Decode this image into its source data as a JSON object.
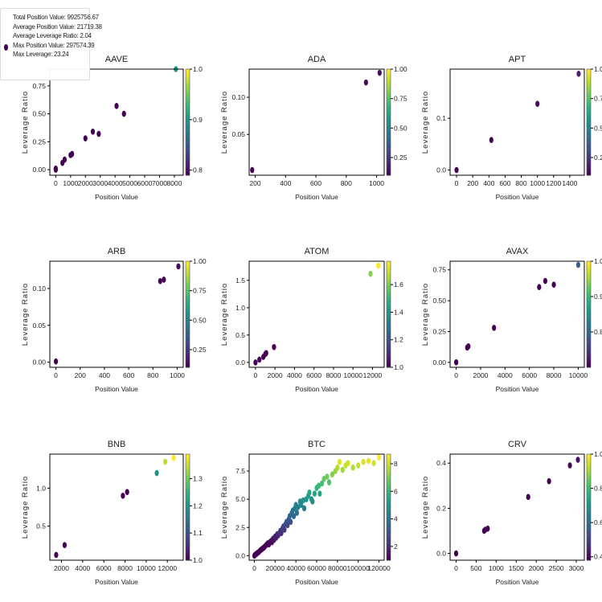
{
  "legend": {
    "lines": [
      "Total Position Value: 9925756.67",
      "Average Position Value: 21719.38",
      "Average Leverage Ratio: 2.04",
      "Max Position Value: 297574.39",
      "Max Leverage: 23.24"
    ],
    "marker_color": "#440154"
  },
  "chart_data": [
    {
      "type": "scatter",
      "title": "AAVE",
      "xlabel": "Position Value",
      "ylabel": "Leverage Ratio",
      "colormap": "viridis",
      "xlim": [
        -400,
        8600
      ],
      "ylim": [
        -0.05,
        0.9
      ],
      "xticks": [
        0,
        1000,
        2000,
        3000,
        4000,
        5000,
        6000,
        7000,
        8000
      ],
      "yticks": [
        0,
        0.25,
        0.5,
        0.75
      ],
      "ytick_labels": [
        "0.00",
        "0.25",
        "0.50",
        "0.75"
      ],
      "clim": [
        0.79,
        1.0
      ],
      "cticks": [
        0.8,
        0.9,
        1.0
      ],
      "ctick_labels": [
        "0.8",
        "0.9",
        "1.0"
      ],
      "points": [
        [
          0,
          0
        ],
        [
          0,
          0.01
        ],
        [
          450,
          0.06
        ],
        [
          600,
          0.09
        ],
        [
          1000,
          0.13
        ],
        [
          1100,
          0.14
        ],
        [
          2000,
          0.28
        ],
        [
          2500,
          0.34
        ],
        [
          2900,
          0.32
        ],
        [
          4100,
          0.57
        ],
        [
          4600,
          0.5
        ],
        [
          8100,
          0.9
        ]
      ]
    },
    {
      "type": "scatter",
      "title": "ADA",
      "xlabel": "Position Value",
      "ylabel": "Leverage Ratio",
      "colormap": "viridis",
      "xlim": [
        160,
        1050
      ],
      "ylim": [
        -0.005,
        0.138
      ],
      "xticks": [
        200,
        400,
        600,
        800,
        1000
      ],
      "yticks": [
        0.05,
        0.1
      ],
      "ytick_labels": [
        "0.05",
        "0.10"
      ],
      "clim": [
        0.1,
        1.0
      ],
      "cticks": [
        0.25,
        0.5,
        0.75,
        1.0
      ],
      "ctick_labels": [
        "0.25",
        "0.50",
        "0.75",
        "1.00"
      ],
      "points": [
        [
          180,
          0.002
        ],
        [
          930,
          0.12
        ],
        [
          1020,
          0.133
        ]
      ]
    },
    {
      "type": "scatter",
      "title": "APT",
      "xlabel": "Position Value",
      "ylabel": "Leverage Ratio",
      "colormap": "viridis",
      "xlim": [
        -80,
        1580
      ],
      "ylim": [
        -0.01,
        0.195
      ],
      "xticks": [
        0,
        200,
        400,
        600,
        800,
        1000,
        1200,
        1400
      ],
      "yticks": [
        0,
        0.1
      ],
      "ytick_labels": [
        "0.0",
        "0.1"
      ],
      "clim": [
        0.1,
        1.0
      ],
      "cticks": [
        0.25,
        0.5,
        0.75,
        1.0
      ],
      "ctick_labels": [
        "0.25",
        "0.50",
        "0.75",
        "1.00"
      ],
      "points": [
        [
          0,
          0
        ],
        [
          430,
          0.058
        ],
        [
          1000,
          0.128
        ],
        [
          1510,
          0.186
        ]
      ]
    },
    {
      "type": "scatter",
      "title": "ARB",
      "xlabel": "Position Value",
      "ylabel": "Leverage Ratio",
      "colormap": "viridis",
      "xlim": [
        -50,
        1050
      ],
      "ylim": [
        -0.007,
        0.137
      ],
      "xticks": [
        0,
        200,
        400,
        600,
        800,
        1000
      ],
      "yticks": [
        0,
        0.05,
        0.1
      ],
      "ytick_labels": [
        "0.00",
        "0.05",
        "0.10"
      ],
      "clim": [
        0.1,
        1.0
      ],
      "cticks": [
        0.25,
        0.5,
        0.75,
        1.0
      ],
      "ctick_labels": [
        "0.25",
        "0.50",
        "0.75",
        "1.00"
      ],
      "points": [
        [
          0,
          0.001
        ],
        [
          860,
          0.11
        ],
        [
          890,
          0.112
        ],
        [
          1010,
          0.13
        ]
      ]
    },
    {
      "type": "scatter",
      "title": "ATOM",
      "xlabel": "Position Value",
      "ylabel": "Leverage Ratio",
      "colormap": "viridis",
      "xlim": [
        -650,
        13200
      ],
      "ylim": [
        -0.09,
        1.85
      ],
      "xticks": [
        0,
        2000,
        4000,
        6000,
        8000,
        10000,
        12000
      ],
      "yticks": [
        0,
        0.5,
        1.0,
        1.5
      ],
      "ytick_labels": [
        "0.0",
        "0.5",
        "1.0",
        "1.5"
      ],
      "clim": [
        1.0,
        1.77
      ],
      "cticks": [
        1.0,
        1.2,
        1.4,
        1.6
      ],
      "ctick_labels": [
        "1.0",
        "1.2",
        "1.4",
        "1.6"
      ],
      "points": [
        [
          0,
          0
        ],
        [
          400,
          0.05
        ],
        [
          800,
          0.1
        ],
        [
          1000,
          0.15
        ],
        [
          1100,
          0.17
        ],
        [
          1900,
          0.28
        ],
        [
          11800,
          1.62
        ],
        [
          12600,
          1.77
        ]
      ]
    },
    {
      "type": "scatter",
      "title": "AVAX",
      "xlabel": "Position Value",
      "ylabel": "Leverage Ratio",
      "colormap": "viridis",
      "xlim": [
        -500,
        10500
      ],
      "ylim": [
        -0.04,
        0.82
      ],
      "xticks": [
        0,
        2000,
        4000,
        6000,
        8000,
        10000
      ],
      "yticks": [
        0,
        0.25,
        0.5,
        0.75
      ],
      "ytick_labels": [
        "0.00",
        "0.25",
        "0.50",
        "0.75"
      ],
      "clim": [
        0.7,
        1.0
      ],
      "cticks": [
        0.8,
        0.9,
        1.0
      ],
      "ctick_labels": [
        "0.8",
        "0.9",
        "1.0"
      ],
      "points": [
        [
          0,
          0
        ],
        [
          900,
          0.12
        ],
        [
          1000,
          0.13
        ],
        [
          3100,
          0.28
        ],
        [
          6800,
          0.61
        ],
        [
          7300,
          0.66
        ],
        [
          8000,
          0.63
        ],
        [
          10000,
          0.79
        ]
      ]
    },
    {
      "type": "scatter",
      "title": "BNB",
      "xlabel": "Position Value",
      "ylabel": "Leverage Ratio",
      "colormap": "viridis",
      "xlim": [
        900,
        13500
      ],
      "ylim": [
        0.05,
        1.45
      ],
      "xticks": [
        2000,
        4000,
        6000,
        8000,
        10000,
        12000
      ],
      "yticks": [
        0.5,
        1.0
      ],
      "ytick_labels": [
        "0.5",
        "1.0"
      ],
      "clim": [
        1.0,
        1.39
      ],
      "cticks": [
        1.0,
        1.1,
        1.2,
        1.3
      ],
      "ctick_labels": [
        "1.0",
        "1.1",
        "1.2",
        "1.3"
      ],
      "points": [
        [
          1500,
          0.12
        ],
        [
          2300,
          0.25
        ],
        [
          7800,
          0.9
        ],
        [
          8200,
          0.95
        ],
        [
          11000,
          1.2
        ],
        [
          11800,
          1.35
        ],
        [
          12600,
          1.4
        ]
      ]
    },
    {
      "type": "scatter",
      "title": "BTC",
      "xlabel": "Position Value",
      "ylabel": "Leverage Ratio",
      "colormap": "viridis",
      "xlim": [
        -5000,
        125000
      ],
      "ylim": [
        -0.4,
        9.0
      ],
      "xticks": [
        0,
        20000,
        40000,
        60000,
        80000,
        100000,
        120000
      ],
      "yticks": [
        0,
        2.5,
        5,
        7.5
      ],
      "ytick_labels": [
        "0.0",
        "2.5",
        "5.0",
        "7.5"
      ],
      "clim": [
        1.0,
        8.7
      ],
      "cticks": [
        2,
        4,
        6,
        8
      ],
      "ctick_labels": [
        "2",
        "4",
        "6",
        "8"
      ],
      "points": [
        [
          0,
          0
        ],
        [
          500,
          0.05
        ],
        [
          1000,
          0.1
        ],
        [
          2000,
          0.15
        ],
        [
          3000,
          0.25
        ],
        [
          4000,
          0.3
        ],
        [
          5000,
          0.4
        ],
        [
          6000,
          0.5
        ],
        [
          7000,
          0.55
        ],
        [
          8000,
          0.65
        ],
        [
          9000,
          0.7
        ],
        [
          10000,
          0.8
        ],
        [
          11000,
          0.9
        ],
        [
          12000,
          1.0
        ],
        [
          13000,
          1.1
        ],
        [
          14000,
          1.0
        ],
        [
          15000,
          1.2
        ],
        [
          16000,
          1.3
        ],
        [
          17000,
          1.2
        ],
        [
          18000,
          1.5
        ],
        [
          19000,
          1.4
        ],
        [
          20000,
          1.7
        ],
        [
          21000,
          1.6
        ],
        [
          22000,
          1.9
        ],
        [
          23000,
          1.8
        ],
        [
          24000,
          2.0
        ],
        [
          25000,
          2.2
        ],
        [
          26000,
          2.0
        ],
        [
          27000,
          2.4
        ],
        [
          28000,
          2.6
        ],
        [
          29000,
          2.3
        ],
        [
          30000,
          2.8
        ],
        [
          31000,
          3.0
        ],
        [
          32000,
          2.7
        ],
        [
          33000,
          3.2
        ],
        [
          34000,
          3.5
        ],
        [
          35000,
          3.0
        ],
        [
          36000,
          3.8
        ],
        [
          37000,
          4.0
        ],
        [
          38000,
          3.5
        ],
        [
          39000,
          4.2
        ],
        [
          40000,
          4.5
        ],
        [
          41000,
          3.8
        ],
        [
          42000,
          4.3
        ],
        [
          44000,
          4.8
        ],
        [
          45000,
          4.5
        ],
        [
          47000,
          4.9
        ],
        [
          48000,
          4.2
        ],
        [
          50000,
          5.0
        ],
        [
          52000,
          5.3
        ],
        [
          53000,
          5.6
        ],
        [
          55000,
          5.0
        ],
        [
          56000,
          4.8
        ],
        [
          58000,
          5.5
        ],
        [
          60000,
          6.0
        ],
        [
          62000,
          6.2
        ],
        [
          63000,
          5.5
        ],
        [
          65000,
          6.4
        ],
        [
          67000,
          6.8
        ],
        [
          70000,
          7.0
        ],
        [
          72000,
          6.5
        ],
        [
          75000,
          7.2
        ],
        [
          78000,
          7.5
        ],
        [
          80000,
          7.8
        ],
        [
          82000,
          8.3
        ],
        [
          85000,
          7.6
        ],
        [
          88000,
          8.0
        ],
        [
          90000,
          8.2
        ],
        [
          95000,
          7.8
        ],
        [
          100000,
          8.0
        ],
        [
          105000,
          8.3
        ],
        [
          110000,
          8.4
        ],
        [
          115000,
          8.2
        ],
        [
          120000,
          8.7
        ]
      ]
    },
    {
      "type": "scatter",
      "title": "CRV",
      "xlabel": "Position Value",
      "ylabel": "Leverage Ratio",
      "colormap": "viridis",
      "xlim": [
        -150,
        3200
      ],
      "ylim": [
        -0.03,
        0.44
      ],
      "xticks": [
        0,
        500,
        1000,
        1500,
        2000,
        2500,
        3000
      ],
      "yticks": [
        0,
        0.2,
        0.4
      ],
      "ytick_labels": [
        "0.0",
        "0.2",
        "0.4"
      ],
      "clim": [
        0.38,
        1.0
      ],
      "cticks": [
        0.4,
        0.6,
        0.8,
        1.0
      ],
      "ctick_labels": [
        "0.4",
        "0.6",
        "0.8",
        "1.0"
      ],
      "points": [
        [
          0,
          0
        ],
        [
          700,
          0.1
        ],
        [
          730,
          0.105
        ],
        [
          790,
          0.11
        ],
        [
          1800,
          0.25
        ],
        [
          2320,
          0.32
        ],
        [
          2840,
          0.39
        ],
        [
          3040,
          0.415
        ]
      ]
    }
  ]
}
